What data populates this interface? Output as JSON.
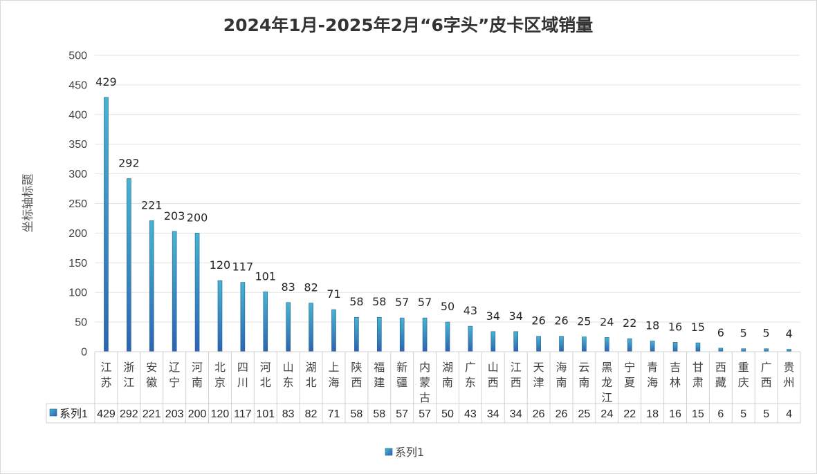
{
  "chart_data": {
    "type": "bar",
    "title": "2024年1月-2025年2月“6字头”皮卡区域销量",
    "ylabel": "坐标轴标题",
    "xlabel": "",
    "ylim": [
      0,
      500
    ],
    "yticks": [
      "0",
      "50",
      "100",
      "150",
      "200",
      "250",
      "300",
      "350",
      "400",
      "450",
      "500"
    ],
    "grid": true,
    "legend": {
      "position": "bottom",
      "entries": [
        "系列1"
      ]
    },
    "data_table": true,
    "categories": [
      "江苏",
      "浙江",
      "安徽",
      "辽宁",
      "河南",
      "北京",
      "四川",
      "河北",
      "山东",
      "湖北",
      "上海",
      "陕西",
      "福建",
      "新疆",
      "内蒙古",
      "湖南",
      "广东",
      "山西",
      "江西",
      "天津",
      "海南",
      "云南",
      "黑龙江",
      "宁夏",
      "青海",
      "吉林",
      "甘肃",
      "西藏",
      "重庆",
      "广西",
      "贵州"
    ],
    "series": [
      {
        "name": "系列1",
        "color": "#3a9fc4",
        "values": [
          429,
          292,
          221,
          203,
          200,
          120,
          117,
          101,
          83,
          82,
          71,
          58,
          58,
          57,
          57,
          50,
          43,
          34,
          34,
          26,
          26,
          25,
          24,
          22,
          18,
          16,
          15,
          6,
          5,
          5,
          4
        ]
      }
    ]
  }
}
